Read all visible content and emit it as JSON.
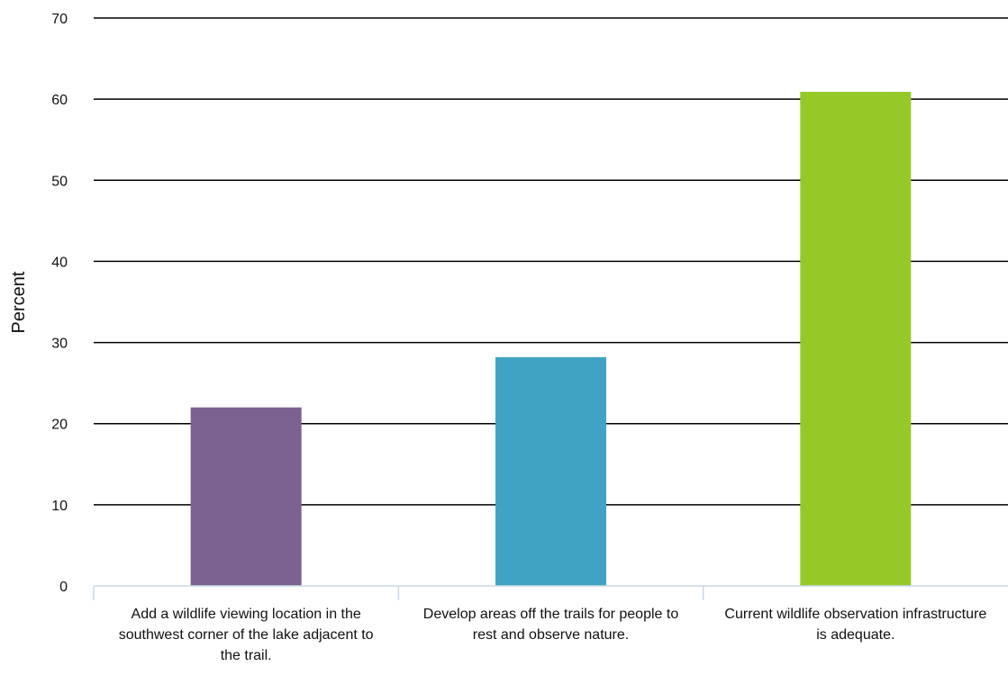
{
  "chart_data": {
    "type": "bar",
    "title": "",
    "xlabel": "",
    "ylabel": "Percent",
    "ylim": [
      0,
      70
    ],
    "yticks": [
      0,
      10,
      20,
      30,
      40,
      50,
      60,
      70
    ],
    "grid": true,
    "categories": [
      "Add a wildlife viewing location in the southwest corner of the lake adjacent to the trail.",
      "Develop areas off the trails for people to rest and observe nature.",
      "Current wildlife observation infrastructure is adequate."
    ],
    "values": [
      22,
      28.2,
      60.9
    ],
    "colors": [
      "#7b618f",
      "#41a3c3",
      "#96c928"
    ]
  }
}
